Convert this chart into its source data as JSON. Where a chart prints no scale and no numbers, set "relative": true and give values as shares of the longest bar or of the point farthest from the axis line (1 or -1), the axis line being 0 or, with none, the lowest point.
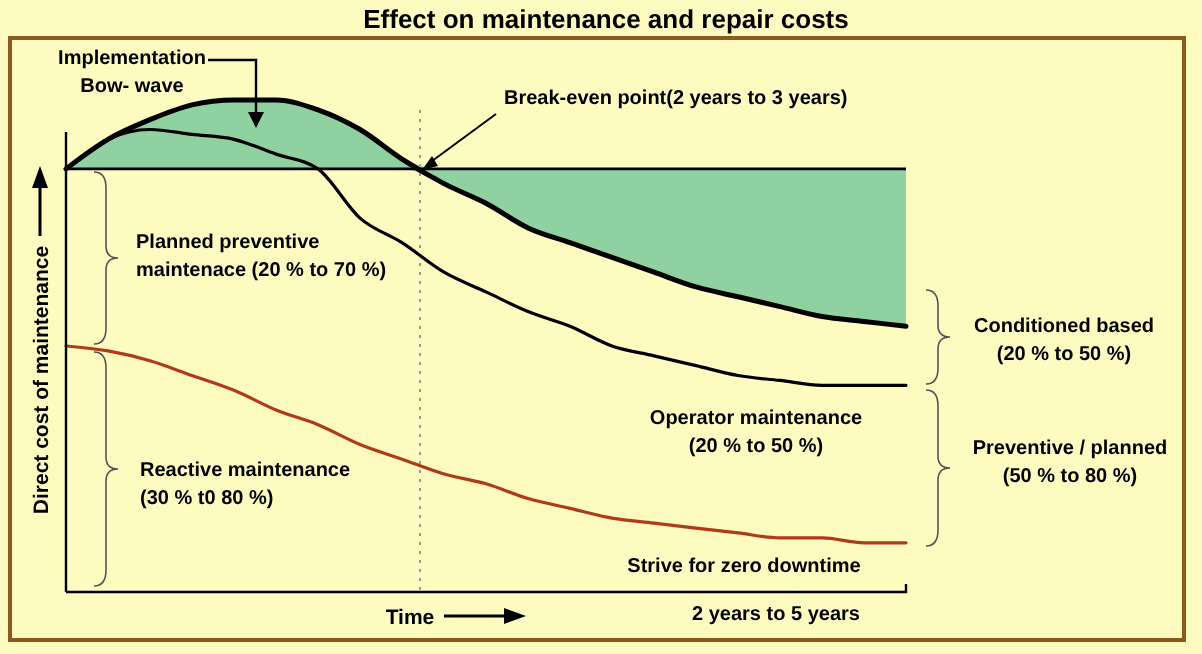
{
  "chart_data": {
    "type": "line",
    "title": "Effect on maintenance and repair costs",
    "xlabel": "Time",
    "ylabel": "Direct cost  of maintenance",
    "relative": true,
    "categories": [
      null,
      null,
      null,
      null,
      null,
      null,
      null,
      null,
      null,
      null,
      null,
      null,
      null,
      null,
      null,
      null,
      null,
      null,
      null,
      null,
      null
    ],
    "series": [
      {
        "color": "#000000",
        "values": [
          0.86,
          0.92,
          0.96,
          0.99,
          1,
          1,
          0.98,
          0.94,
          0.88,
          0.83,
          0.79,
          0.74,
          0.71,
          0.68,
          0.65,
          0.62,
          0.6,
          0.58,
          0.56,
          0.55,
          0.54
        ],
        "lower": [
          0.86,
          0.86,
          0.86,
          0.86,
          0.86,
          0.86,
          0.86,
          0.86,
          0.86,
          0.83,
          0.79,
          0.74,
          0.71,
          0.68,
          0.65,
          0.62,
          0.6,
          0.58,
          0.56,
          0.55,
          0.54
        ],
        "upper": [
          0.86,
          0.92,
          0.96,
          0.99,
          1,
          1,
          0.98,
          0.94,
          0.88,
          0.86,
          0.86,
          0.86,
          0.86,
          0.86,
          0.86,
          0.86,
          0.86,
          0.86,
          0.86,
          0.86,
          0.86
        ]
      },
      {
        "color": "#000000",
        "values": [
          0.86,
          0.92,
          0.94,
          0.93,
          0.92,
          0.89,
          0.86,
          0.76,
          0.71,
          0.65,
          0.61,
          0.57,
          0.54,
          0.5,
          0.48,
          0.46,
          0.44,
          0.43,
          0.42,
          0.42,
          0.42
        ]
      },
      {
        "color": "#b03a1a",
        "values": [
          0.5,
          0.49,
          0.47,
          0.44,
          0.41,
          0.37,
          0.34,
          0.3,
          0.27,
          0.24,
          0.22,
          0.19,
          0.17,
          0.15,
          0.14,
          0.13,
          0.12,
          0.11,
          0.11,
          0.1,
          0.1
        ]
      }
    ],
    "ref_lines": [
      {
        "axis": "y",
        "value": 0.86,
        "color": "#000000",
        "line_style": "solid"
      }
    ],
    "annotations": [
      "Implementation Bow- wave",
      "Break-even point(2 years to 3 years)",
      "Planned preventive maintenace (20 % to 70 %)",
      "Reactive maintenance (30 % t0 80 %)",
      "Operator maintenance (20 % to 50 %)",
      "Conditioned based (20 % to 50 %)",
      "Preventive / planned (50 % to 80 %)",
      "Strive for zero downtime",
      "2 years to 5 years"
    ],
    "marker": "none",
    "line_style": "solid"
  }
}
